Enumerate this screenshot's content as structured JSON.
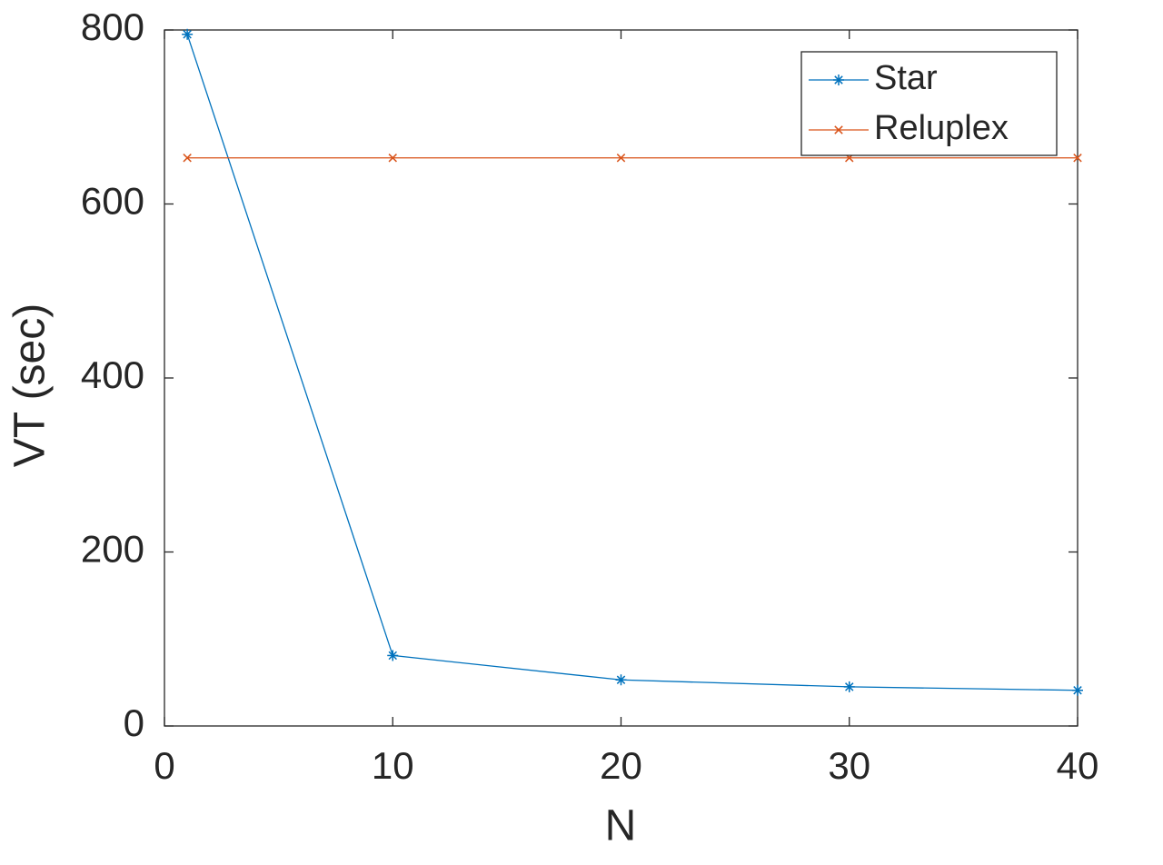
{
  "chart_data": {
    "type": "line",
    "xlabel": "N",
    "ylabel": "VT (sec)",
    "x": [
      1,
      10,
      20,
      30,
      40
    ],
    "series": [
      {
        "name": "Star",
        "color": "#0072bd",
        "marker": "star",
        "values": [
          795,
          81,
          53,
          45,
          41
        ]
      },
      {
        "name": "Reluplex",
        "color": "#d95319",
        "marker": "x",
        "values": [
          653,
          653,
          653,
          653,
          653
        ]
      }
    ],
    "xlim": [
      0,
      40
    ],
    "ylim": [
      0,
      800
    ],
    "xticks": [
      0,
      10,
      20,
      30,
      40
    ],
    "yticks": [
      0,
      200,
      400,
      600,
      800
    ],
    "grid": false,
    "legend": "top-right"
  }
}
